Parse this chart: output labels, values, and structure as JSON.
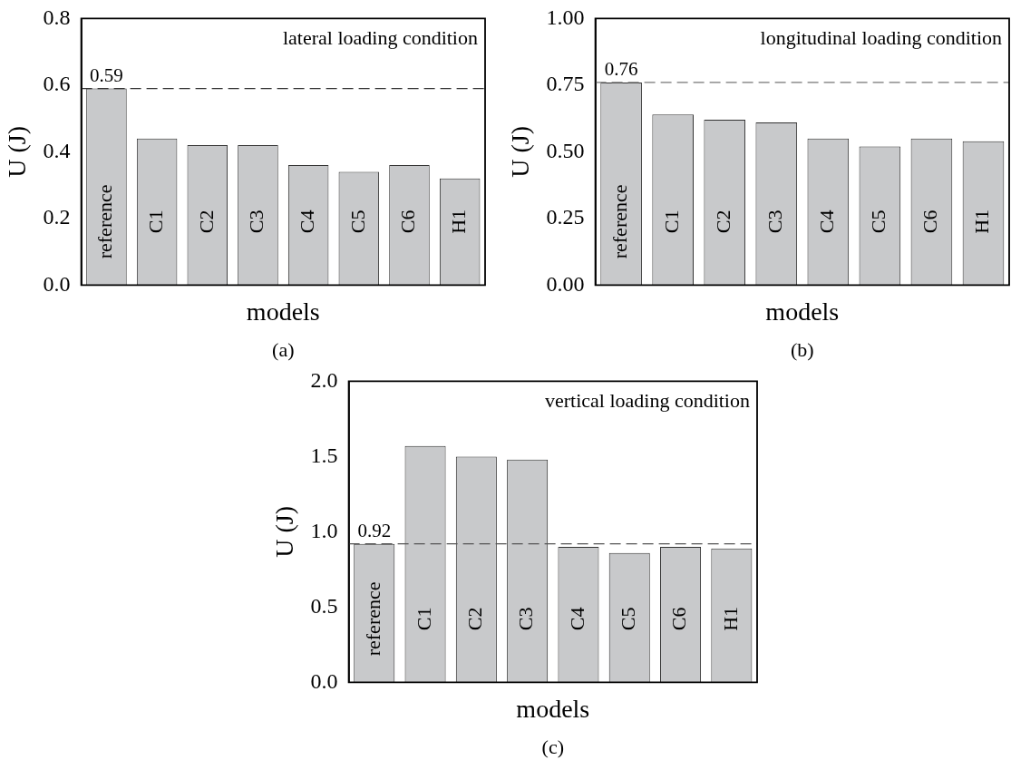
{
  "chart_data": [
    {
      "type": "bar",
      "xlabel": "models",
      "ylabel": "U (J)",
      "categories": [
        "reference",
        "C1",
        "C2",
        "C3",
        "C4",
        "C5",
        "C6",
        "H1"
      ],
      "values": [
        0.59,
        0.44,
        0.42,
        0.42,
        0.36,
        0.34,
        0.36,
        0.32
      ],
      "value_labels": [
        "0.59",
        null,
        null,
        null,
        null,
        null,
        null,
        null
      ],
      "color": "#c8c9cb",
      "ylim": [
        0,
        0.8
      ],
      "yticks": [
        {
          "value": 0,
          "label": "0.0"
        },
        {
          "value": 0.2,
          "label": "0.2"
        },
        {
          "value": 0.4,
          "label": "0.4"
        },
        {
          "value": 0.6,
          "label": "0.6"
        },
        {
          "value": 0.8,
          "label": "0.8"
        }
      ],
      "grid": false,
      "legend": false,
      "ref_lines": [
        {
          "axis": "y",
          "value": 0.59,
          "color": "#333333",
          "line_style": "dashed"
        }
      ],
      "annotations": [
        "lateral loading condition",
        "(a)"
      ]
    },
    {
      "type": "bar",
      "xlabel": "models",
      "ylabel": "U (J)",
      "categories": [
        "reference",
        "C1",
        "C2",
        "C3",
        "C4",
        "C5",
        "C6",
        "H1"
      ],
      "values": [
        0.76,
        0.64,
        0.62,
        0.61,
        0.55,
        0.52,
        0.55,
        0.54
      ],
      "value_labels": [
        "0.76",
        null,
        null,
        null,
        null,
        null,
        null,
        null
      ],
      "color": "#c8c9cb",
      "ylim": [
        0,
        1
      ],
      "yticks": [
        {
          "value": 0,
          "label": "0.00"
        },
        {
          "value": 0.25,
          "label": "0.25"
        },
        {
          "value": 0.5,
          "label": "0.50"
        },
        {
          "value": 0.75,
          "label": "0.75"
        },
        {
          "value": 1,
          "label": "1.00"
        }
      ],
      "grid": false,
      "legend": false,
      "ref_lines": [
        {
          "axis": "y",
          "value": 0.76,
          "color": "#777777",
          "line_style": "dashed"
        }
      ],
      "annotations": [
        "longitudinal loading condition",
        "(b)"
      ]
    },
    {
      "type": "bar",
      "xlabel": "models",
      "ylabel": "U (J)",
      "categories": [
        "reference",
        "C1",
        "C2",
        "C3",
        "C4",
        "C5",
        "C6",
        "H1"
      ],
      "values": [
        0.92,
        1.57,
        1.5,
        1.48,
        0.9,
        0.86,
        0.9,
        0.89
      ],
      "value_labels": [
        "0.92",
        null,
        null,
        null,
        null,
        null,
        null,
        null
      ],
      "color": "#c8c9cb",
      "ylim": [
        0,
        2
      ],
      "yticks": [
        {
          "value": 0,
          "label": "0.0"
        },
        {
          "value": 0.5,
          "label": "0.5"
        },
        {
          "value": 1,
          "label": "1.0"
        },
        {
          "value": 1.5,
          "label": "1.5"
        },
        {
          "value": 2,
          "label": "2.0"
        }
      ],
      "grid": false,
      "legend": false,
      "ref_lines": [
        {
          "axis": "y",
          "value": 0.92,
          "color": "#555555",
          "line_style": "dashed"
        }
      ],
      "annotations": [
        "vertical loading condition",
        "(c)"
      ]
    }
  ]
}
